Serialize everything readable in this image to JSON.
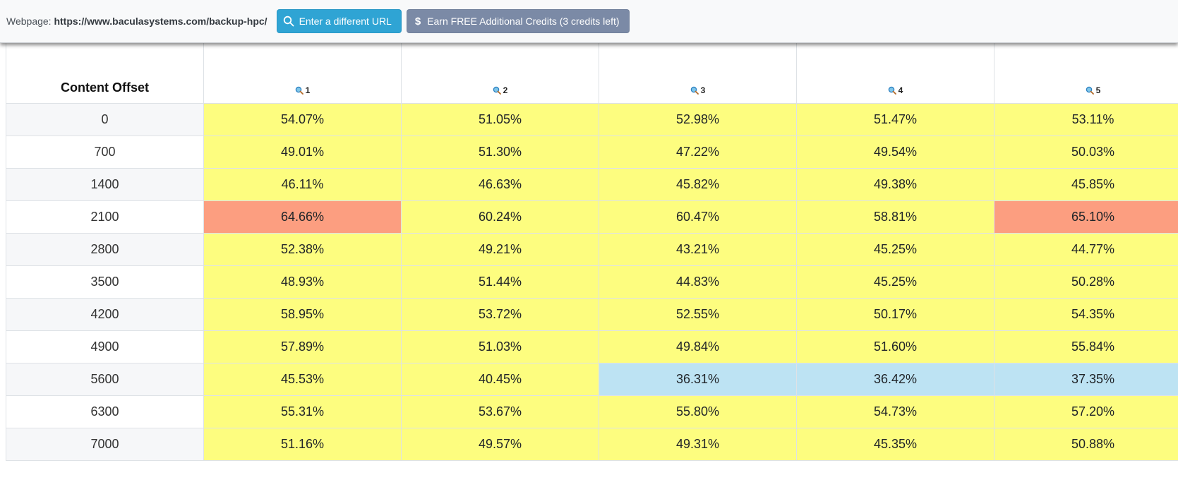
{
  "toolbar": {
    "url_prefix": "Webpage:",
    "url_value": "https://www.baculasystems.com/backup-hpc/",
    "enter_url_label": "Enter a different URL",
    "credits_symbol": "$",
    "credits_label": "Earn FREE Additional Credits (3 credits left)",
    "url_button_color": "#2fa4d4",
    "credits_button_color": "#7b8aa6",
    "search_icon": "search-icon",
    "dollar_icon": "dollar-icon"
  },
  "table": {
    "offset_header": "Content Offset",
    "columns": [
      "1",
      "2",
      "3",
      "4",
      "5"
    ],
    "column_icon": "magnifier-icon",
    "colors": {
      "yellow": "#fdfd7f",
      "orange": "#fc9e80",
      "blue": "#bde3f3"
    },
    "rows": [
      {
        "offset": "0",
        "cells": [
          {
            "v": "54.07%",
            "c": "yellow"
          },
          {
            "v": "51.05%",
            "c": "yellow"
          },
          {
            "v": "52.98%",
            "c": "yellow"
          },
          {
            "v": "51.47%",
            "c": "yellow"
          },
          {
            "v": "53.11%",
            "c": "yellow"
          }
        ]
      },
      {
        "offset": "700",
        "cells": [
          {
            "v": "49.01%",
            "c": "yellow"
          },
          {
            "v": "51.30%",
            "c": "yellow"
          },
          {
            "v": "47.22%",
            "c": "yellow"
          },
          {
            "v": "49.54%",
            "c": "yellow"
          },
          {
            "v": "50.03%",
            "c": "yellow"
          }
        ]
      },
      {
        "offset": "1400",
        "cells": [
          {
            "v": "46.11%",
            "c": "yellow"
          },
          {
            "v": "46.63%",
            "c": "yellow"
          },
          {
            "v": "45.82%",
            "c": "yellow"
          },
          {
            "v": "49.38%",
            "c": "yellow"
          },
          {
            "v": "45.85%",
            "c": "yellow"
          }
        ]
      },
      {
        "offset": "2100",
        "cells": [
          {
            "v": "64.66%",
            "c": "orange"
          },
          {
            "v": "60.24%",
            "c": "yellow"
          },
          {
            "v": "60.47%",
            "c": "yellow"
          },
          {
            "v": "58.81%",
            "c": "yellow"
          },
          {
            "v": "65.10%",
            "c": "orange"
          }
        ]
      },
      {
        "offset": "2800",
        "cells": [
          {
            "v": "52.38%",
            "c": "yellow"
          },
          {
            "v": "49.21%",
            "c": "yellow"
          },
          {
            "v": "43.21%",
            "c": "yellow"
          },
          {
            "v": "45.25%",
            "c": "yellow"
          },
          {
            "v": "44.77%",
            "c": "yellow"
          }
        ]
      },
      {
        "offset": "3500",
        "cells": [
          {
            "v": "48.93%",
            "c": "yellow"
          },
          {
            "v": "51.44%",
            "c": "yellow"
          },
          {
            "v": "44.83%",
            "c": "yellow"
          },
          {
            "v": "45.25%",
            "c": "yellow"
          },
          {
            "v": "50.28%",
            "c": "yellow"
          }
        ]
      },
      {
        "offset": "4200",
        "cells": [
          {
            "v": "58.95%",
            "c": "yellow"
          },
          {
            "v": "53.72%",
            "c": "yellow"
          },
          {
            "v": "52.55%",
            "c": "yellow"
          },
          {
            "v": "50.17%",
            "c": "yellow"
          },
          {
            "v": "54.35%",
            "c": "yellow"
          }
        ]
      },
      {
        "offset": "4900",
        "cells": [
          {
            "v": "57.89%",
            "c": "yellow"
          },
          {
            "v": "51.03%",
            "c": "yellow"
          },
          {
            "v": "49.84%",
            "c": "yellow"
          },
          {
            "v": "51.60%",
            "c": "yellow"
          },
          {
            "v": "55.84%",
            "c": "yellow"
          }
        ]
      },
      {
        "offset": "5600",
        "cells": [
          {
            "v": "45.53%",
            "c": "yellow"
          },
          {
            "v": "40.45%",
            "c": "yellow"
          },
          {
            "v": "36.31%",
            "c": "blue"
          },
          {
            "v": "36.42%",
            "c": "blue"
          },
          {
            "v": "37.35%",
            "c": "blue"
          }
        ]
      },
      {
        "offset": "6300",
        "cells": [
          {
            "v": "55.31%",
            "c": "yellow"
          },
          {
            "v": "53.67%",
            "c": "yellow"
          },
          {
            "v": "55.80%",
            "c": "yellow"
          },
          {
            "v": "54.73%",
            "c": "yellow"
          },
          {
            "v": "57.20%",
            "c": "yellow"
          }
        ]
      },
      {
        "offset": "7000",
        "cells": [
          {
            "v": "51.16%",
            "c": "yellow"
          },
          {
            "v": "49.57%",
            "c": "yellow"
          },
          {
            "v": "49.31%",
            "c": "yellow"
          },
          {
            "v": "45.35%",
            "c": "yellow"
          },
          {
            "v": "50.88%",
            "c": "yellow"
          }
        ]
      }
    ]
  }
}
